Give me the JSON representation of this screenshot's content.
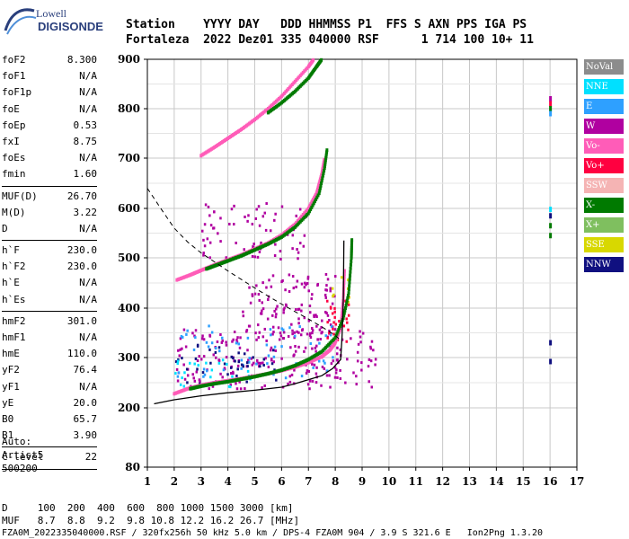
{
  "logo": {
    "line1": "Lowell",
    "line2": "DIGISONDE"
  },
  "header": {
    "line1": "Station    YYYY DAY   DDD HHMMSS P1  FFS S AXN PPS IGA PS",
    "line2": "Fortaleza  2022 Dez01 335 040000 RSF      1 714 100 10+ 11"
  },
  "params": [
    {
      "name": "foF2",
      "value": "8.300"
    },
    {
      "name": "foF1",
      "value": "N/A"
    },
    {
      "name": "foF1p",
      "value": "N/A"
    },
    {
      "name": "foE",
      "value": "N/A"
    },
    {
      "name": "foEp",
      "value": "0.53"
    },
    {
      "name": "fxI",
      "value": "8.75"
    },
    {
      "name": "foEs",
      "value": "N/A"
    },
    {
      "name": "fmin",
      "value": "1.60"
    },
    {
      "sep": true
    },
    {
      "name": "MUF(D)",
      "value": "26.70"
    },
    {
      "name": "M(D)",
      "value": "3.22"
    },
    {
      "name": "D",
      "value": "N/A"
    },
    {
      "sep": true
    },
    {
      "name": "h`F",
      "value": "230.0"
    },
    {
      "name": "h`F2",
      "value": "230.0"
    },
    {
      "name": "h`E",
      "value": "N/A"
    },
    {
      "name": "h`Es",
      "value": "N/A"
    },
    {
      "sep": true
    },
    {
      "name": "hmF2",
      "value": "301.0"
    },
    {
      "name": "hmF1",
      "value": "N/A"
    },
    {
      "name": "hmE",
      "value": "110.0"
    },
    {
      "name": "yF2",
      "value": "76.4"
    },
    {
      "name": "yF1",
      "value": "N/A"
    },
    {
      "name": "yE",
      "value": "20.0"
    },
    {
      "name": "B0",
      "value": "65.7"
    },
    {
      "name": "B1",
      "value": "3.90"
    },
    {
      "sep": true
    },
    {
      "name": "C-level",
      "value": "22"
    },
    {
      "sep": true
    }
  ],
  "auto": {
    "line1": "Auto:",
    "line2": "Artist5",
    "line3": "500200"
  },
  "bottom": {
    "d_row": "D     100  200  400  600  800 1000 1500 3000 [km]",
    "muf_row": "MUF   8.7  8.8  9.2  9.8 10.8 12.2 16.2 26.7 [MHz]",
    "footer": "FZA0M_2022335040000.RSF / 320fx256h 50 kHz 5.0 km / DPS-4 FZA0M 904 / 3.9 S 321.6 E   Ion2Png 1.3.20"
  },
  "legend": [
    {
      "label": "NoVal",
      "color": "#8c8c8c"
    },
    {
      "label": "NNE",
      "color": "#00e0ff"
    },
    {
      "label": "E",
      "color": "#2ea0ff"
    },
    {
      "label": "W",
      "color": "#b000a0"
    },
    {
      "label": "Vo-",
      "color": "#ff5cb8"
    },
    {
      "label": "Vo+",
      "color": "#ff0040"
    },
    {
      "label": "SSW",
      "color": "#f5b4b4"
    },
    {
      "label": "X-",
      "color": "#007a00"
    },
    {
      "label": "X+",
      "color": "#7fbf5f"
    },
    {
      "label": "SSE",
      "color": "#d8d800"
    },
    {
      "label": "NNW",
      "color": "#101080"
    }
  ],
  "chart_data": {
    "type": "scatter",
    "xlabel": "",
    "ylabel": "",
    "xlim": [
      1,
      17
    ],
    "ylim": [
      80,
      900
    ],
    "x_ticks": [
      "1",
      "2",
      "3",
      "4",
      "5",
      "6",
      "7",
      "8",
      "9",
      "10",
      "11",
      "12",
      "13",
      "14",
      "15",
      "16",
      "17"
    ],
    "y_ticks": [
      "80",
      "200",
      "300",
      "400",
      "500",
      "600",
      "700",
      "800",
      "900"
    ],
    "grid": true,
    "series": [
      {
        "name": "O-trace",
        "color": "#ff5cb8",
        "points": [
          [
            2.0,
            228
          ],
          [
            2.5,
            238
          ],
          [
            3,
            245
          ],
          [
            3.5,
            250
          ],
          [
            4,
            254
          ],
          [
            4.5,
            258
          ],
          [
            5,
            263
          ],
          [
            5.5,
            268
          ],
          [
            6,
            274
          ],
          [
            6.5,
            281
          ],
          [
            7,
            290
          ],
          [
            7.5,
            302
          ],
          [
            7.8,
            315
          ],
          [
            8.0,
            330
          ],
          [
            8.2,
            360
          ],
          [
            8.3,
            420
          ],
          [
            8.35,
            480
          ]
        ]
      },
      {
        "name": "X-trace",
        "color": "#007a00",
        "points": [
          [
            2.6,
            238
          ],
          [
            3,
            243
          ],
          [
            3.5,
            248
          ],
          [
            4,
            252
          ],
          [
            4.5,
            257
          ],
          [
            5,
            262
          ],
          [
            5.5,
            268
          ],
          [
            6,
            275
          ],
          [
            6.5,
            284
          ],
          [
            7,
            296
          ],
          [
            7.5,
            312
          ],
          [
            8.0,
            340
          ],
          [
            8.3,
            380
          ],
          [
            8.5,
            430
          ],
          [
            8.6,
            500
          ],
          [
            8.62,
            540
          ]
        ]
      },
      {
        "name": "O-trace 2nd hop",
        "color": "#ff5cb8",
        "points": [
          [
            2.1,
            456
          ],
          [
            2.6,
            466
          ],
          [
            3,
            475
          ],
          [
            3.5,
            486
          ],
          [
            4,
            496
          ],
          [
            4.5,
            506
          ],
          [
            5,
            518
          ],
          [
            5.5,
            530
          ],
          [
            6,
            546
          ],
          [
            6.5,
            568
          ],
          [
            7,
            600
          ],
          [
            7.3,
            630
          ],
          [
            7.5,
            670
          ],
          [
            7.6,
            700
          ]
        ]
      },
      {
        "name": "X-trace 2nd hop",
        "color": "#007a00",
        "points": [
          [
            3.2,
            478
          ],
          [
            3.6,
            486
          ],
          [
            4,
            494
          ],
          [
            4.5,
            504
          ],
          [
            5,
            516
          ],
          [
            5.5,
            528
          ],
          [
            6,
            542
          ],
          [
            6.5,
            562
          ],
          [
            7,
            590
          ],
          [
            7.4,
            630
          ],
          [
            7.6,
            680
          ],
          [
            7.7,
            720
          ]
        ]
      },
      {
        "name": "O-trace 3rd hop",
        "color": "#ff5cb8",
        "points": [
          [
            3.0,
            705
          ],
          [
            3.5,
            722
          ],
          [
            4,
            740
          ],
          [
            4.5,
            758
          ],
          [
            5,
            778
          ],
          [
            5.5,
            800
          ],
          [
            6,
            825
          ],
          [
            6.5,
            855
          ],
          [
            7,
            885
          ],
          [
            7.2,
            900
          ]
        ]
      },
      {
        "name": "X-trace 3rd hop",
        "color": "#007a00",
        "points": [
          [
            5.5,
            792
          ],
          [
            6,
            812
          ],
          [
            6.5,
            835
          ],
          [
            7,
            862
          ],
          [
            7.3,
            885
          ],
          [
            7.5,
            900
          ]
        ]
      }
    ],
    "profile_curve": [
      [
        1.25,
        208
      ],
      [
        2,
        216
      ],
      [
        3,
        224
      ],
      [
        4,
        230
      ],
      [
        5,
        235
      ],
      [
        6,
        241
      ],
      [
        6.5,
        248
      ],
      [
        7,
        256
      ],
      [
        7.5,
        264
      ],
      [
        7.9,
        278
      ],
      [
        8.2,
        296
      ],
      [
        8.25,
        340
      ],
      [
        8.3,
        420
      ],
      [
        8.32,
        535
      ]
    ],
    "dashed_curve": [
      [
        1,
        640
      ],
      [
        1.5,
        600
      ],
      [
        2,
        560
      ],
      [
        2.5,
        532
      ],
      [
        3,
        510
      ],
      [
        3.5,
        492
      ],
      [
        4,
        474
      ],
      [
        4.5,
        457
      ],
      [
        5,
        440
      ],
      [
        5.5,
        424
      ],
      [
        6,
        408
      ],
      [
        6.5,
        393
      ],
      [
        7,
        378
      ],
      [
        7.5,
        362
      ],
      [
        8,
        345
      ],
      [
        8.2,
        335
      ]
    ],
    "scatter_clusters": [
      {
        "color": "#b000a0",
        "xr": [
          2,
          9.5
        ],
        "yr": [
          240,
          360
        ],
        "n": 230
      },
      {
        "color": "#b000a0",
        "xr": [
          4.5,
          8
        ],
        "yr": [
          350,
          470
        ],
        "n": 110
      },
      {
        "color": "#b000a0",
        "xr": [
          3,
          7
        ],
        "yr": [
          500,
          620
        ],
        "n": 70
      },
      {
        "color": "#2ea0ff",
        "xr": [
          2,
          8
        ],
        "yr": [
          260,
          370
        ],
        "n": 60
      },
      {
        "color": "#101080",
        "xr": [
          2,
          6
        ],
        "yr": [
          250,
          330
        ],
        "n": 40
      },
      {
        "color": "#00e0ff",
        "xr": [
          2,
          5
        ],
        "yr": [
          240,
          300
        ],
        "n": 25
      },
      {
        "color": "#ff0040",
        "xr": [
          7.5,
          8.5
        ],
        "yr": [
          330,
          430
        ],
        "n": 25
      },
      {
        "color": "#d8d800",
        "xr": [
          7.8,
          8.5
        ],
        "yr": [
          410,
          470
        ],
        "n": 10
      }
    ]
  }
}
